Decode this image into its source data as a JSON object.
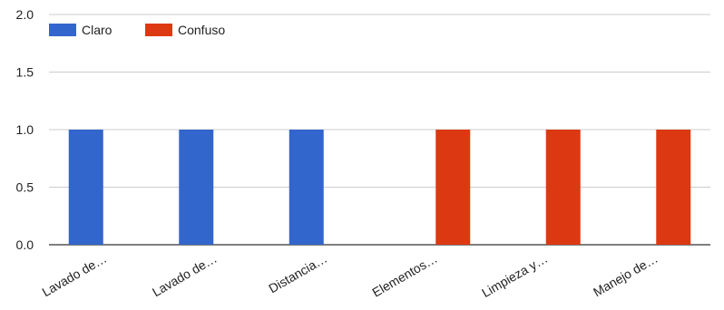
{
  "chart_data": {
    "type": "bar",
    "categories": [
      "Lavado de…",
      "Lavado de…",
      "Distancia…",
      "Elementos…",
      "Limpieza y…",
      "Manejo de…"
    ],
    "series": [
      {
        "name": "Claro",
        "color": "#3366cc",
        "values": [
          1,
          1,
          1,
          0,
          0,
          0
        ]
      },
      {
        "name": "Confuso",
        "color": "#dc3912",
        "values": [
          0,
          0,
          0,
          1,
          1,
          1
        ]
      }
    ],
    "ylim": [
      0,
      2
    ],
    "yticks": [
      "0.0",
      "0.5",
      "1.0",
      "1.5",
      "2.0"
    ],
    "legend_position": "top-left",
    "grid": true
  }
}
